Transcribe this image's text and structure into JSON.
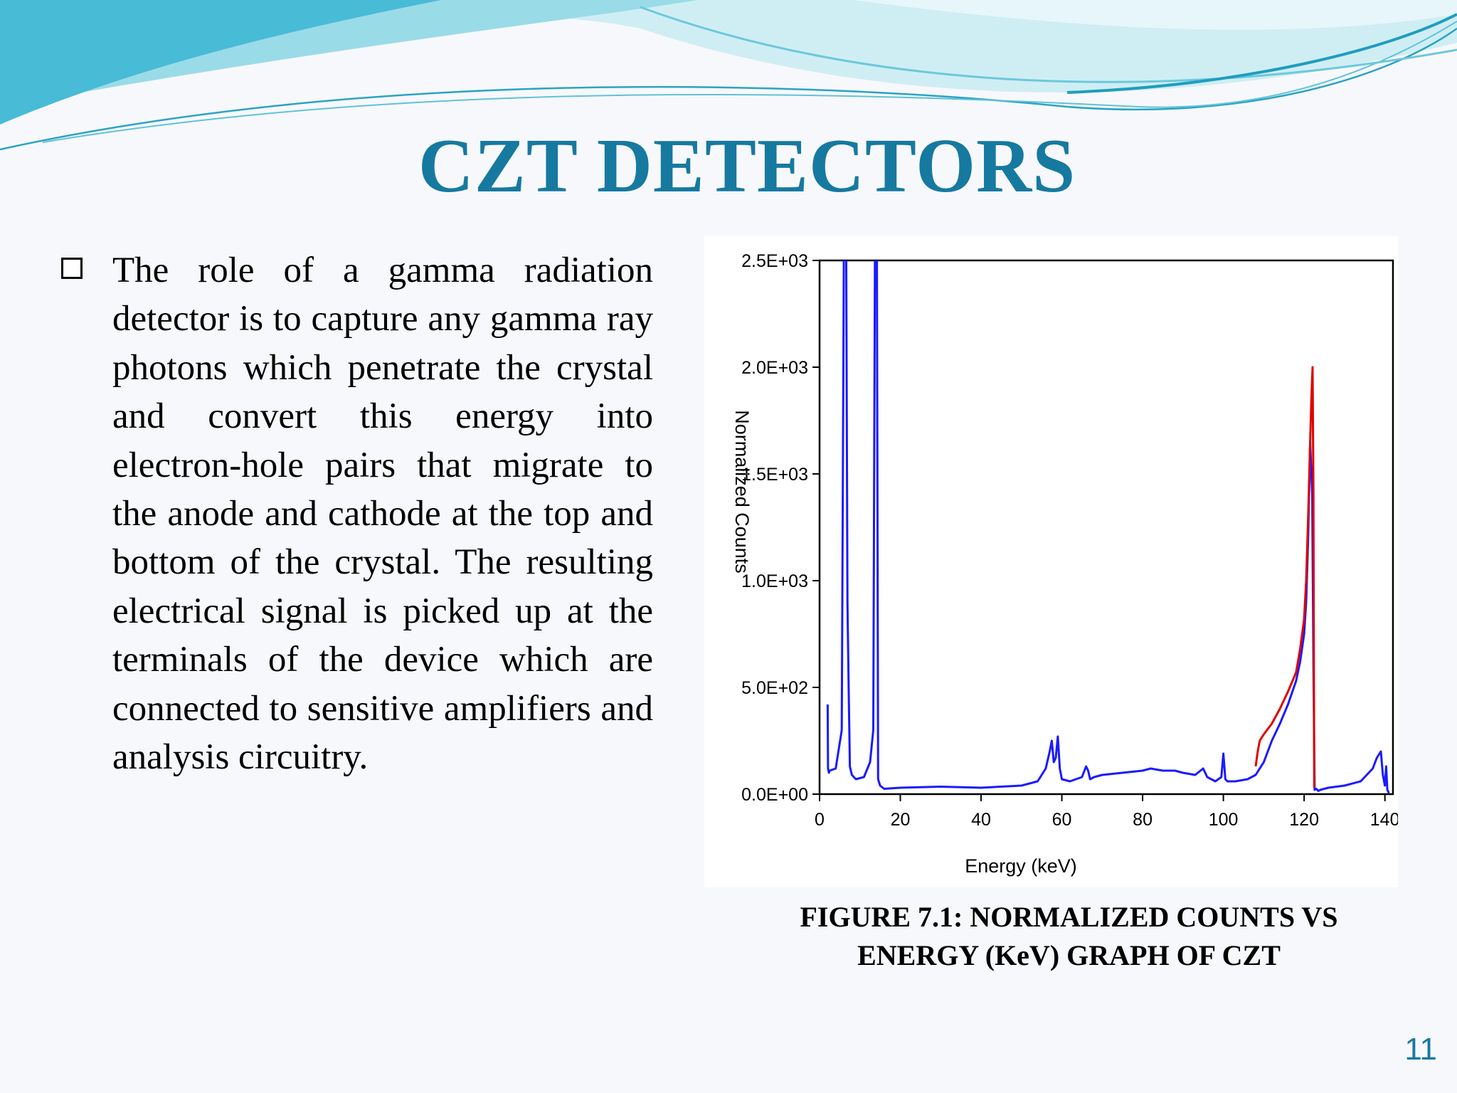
{
  "slide": {
    "title": "CZT DETECTORS",
    "bullet_text": "The role of a gamma radiation detector is to capture any gamma ray photons which penetrate the crystal and convert this energy into electron-hole pairs that migrate to the anode and cathode at the top and bottom of the crystal. The resulting electrical signal is picked up at the terminals of the device which are connected to sensitive amplifiers and analysis circuitry.",
    "caption_line1": "FIGURE 7.1: NORMALIZED COUNTS VS",
    "caption_line2": "ENERGY (KeV) GRAPH OF CZT",
    "slide_number": "11",
    "colors": {
      "title": "#1679a0",
      "wave_light": "#bfe7ef",
      "wave_mid": "#7fd1e0",
      "wave_dark": "#2aaed0"
    }
  },
  "chart_data": {
    "type": "line",
    "title": "",
    "xlabel": "Energy (keV)",
    "ylabel": "Normalized Counts",
    "xlim": [
      0,
      142
    ],
    "ylim": [
      0,
      2500
    ],
    "x_ticks": [
      0,
      20,
      40,
      60,
      80,
      100,
      120,
      140
    ],
    "x_tick_labels": [
      "0",
      "20",
      "40",
      "60",
      "80",
      "100",
      "120",
      "140"
    ],
    "y_ticks": [
      0,
      500,
      1000,
      1500,
      2000,
      2500
    ],
    "y_tick_labels": [
      "0.0E+00",
      "5.0E+02",
      "1.0E+03",
      "1.5E+03",
      "2.0E+03",
      "2.5E+03"
    ],
    "grid": false,
    "legend": "none",
    "series": [
      {
        "color": "#1a1aff",
        "x": [
          2,
          2.1,
          2.3,
          2.5,
          4,
          5.5,
          6,
          6.3,
          6.6,
          6.9,
          7.2,
          7.5,
          8,
          9,
          11,
          12.5,
          13.3,
          13.7,
          14,
          14.2,
          14.5,
          15,
          16,
          20,
          30,
          40,
          50,
          54,
          56,
          57,
          57.5,
          58,
          58.5,
          59,
          59.5,
          60,
          62,
          65,
          66,
          66.5,
          67,
          68,
          70,
          75,
          80,
          82,
          85,
          88,
          90,
          93,
          95,
          96,
          98,
          99.5,
          100,
          100.5,
          101,
          103,
          106,
          108,
          110,
          112,
          114,
          116,
          118,
          119,
          120,
          120.5,
          121,
          121.5,
          122,
          122.3,
          122.6,
          123,
          123.5,
          124,
          126,
          130,
          134,
          137,
          138,
          139,
          139.5,
          140,
          140.3,
          140.6,
          141
        ],
        "y": [
          420,
          120,
          100,
          110,
          120,
          300,
          2500,
          2500,
          2500,
          900,
          500,
          130,
          90,
          70,
          80,
          150,
          300,
          2500,
          2500,
          2500,
          70,
          40,
          25,
          30,
          35,
          30,
          40,
          60,
          120,
          200,
          250,
          150,
          170,
          270,
          120,
          70,
          60,
          80,
          130,
          110,
          70,
          80,
          90,
          100,
          110,
          120,
          110,
          110,
          100,
          90,
          120,
          80,
          60,
          80,
          190,
          70,
          60,
          60,
          70,
          90,
          150,
          250,
          330,
          420,
          530,
          620,
          750,
          900,
          1200,
          1650,
          1400,
          600,
          20,
          25,
          15,
          20,
          30,
          40,
          60,
          120,
          170,
          200,
          90,
          40,
          130,
          20,
          5
        ]
      },
      {
        "color": "#e00000",
        "x": [
          108,
          108.5,
          109,
          110,
          112,
          114,
          116,
          118,
          119,
          120,
          120.5,
          121,
          121.5,
          121.8,
          122.1,
          122.3,
          122.5
        ],
        "y": [
          130,
          200,
          250,
          280,
          330,
          400,
          480,
          570,
          680,
          820,
          1000,
          1300,
          1650,
          1850,
          2000,
          1400,
          30
        ]
      }
    ]
  }
}
